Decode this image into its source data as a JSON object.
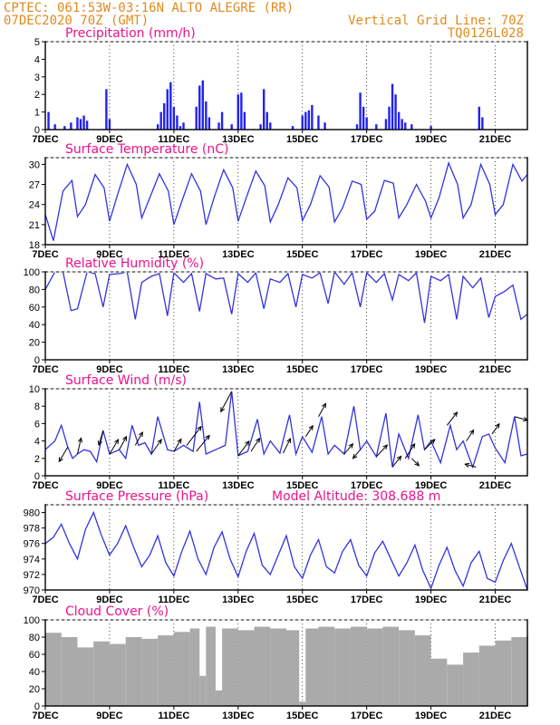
{
  "header": {
    "line1_left": "CPTEC:   061:53W-03:16N  ALTO ALEGRE (RR)",
    "line2_left": "07DEC2020 70Z (GMT)",
    "line1_right": "Vertical Grid Line: 70Z",
    "line2_right": "TQ0126L028"
  },
  "x_ticks": [
    "7DEC",
    "9DEC",
    "11DEC",
    "13DEC",
    "15DEC",
    "17DEC",
    "19DEC",
    "21DEC"
  ],
  "x_range_days": [
    7,
    22
  ],
  "colors": {
    "line": "#3333dd",
    "bar": "#2222ee",
    "cloud": "#aaaaaa",
    "header": "#e08a1e",
    "title": "#e8138c"
  },
  "chart_data": [
    {
      "type": "bar",
      "id": "precip",
      "title": "Precipitation (mm/h)",
      "ylim": [
        0,
        5
      ],
      "yticks": [
        0,
        1,
        2,
        3,
        4,
        5
      ],
      "x_days": [
        7.1,
        7.3,
        7.6,
        7.8,
        8.0,
        8.1,
        8.2,
        8.3,
        8.9,
        9.0,
        10.5,
        10.6,
        10.7,
        10.8,
        10.9,
        11.0,
        11.1,
        11.2,
        11.3,
        11.7,
        11.8,
        11.9,
        12.0,
        12.1,
        12.4,
        12.5,
        12.8,
        13.0,
        13.1,
        13.2,
        13.7,
        13.8,
        13.9,
        14.0,
        14.7,
        15.0,
        15.1,
        15.2,
        15.3,
        15.5,
        15.7,
        16.7,
        16.8,
        16.9,
        17.0,
        17.3,
        17.6,
        17.7,
        17.8,
        17.9,
        18.0,
        18.1,
        18.2,
        18.4,
        19.0,
        20.5,
        20.6
      ],
      "values": [
        1.0,
        0.3,
        0.2,
        0.4,
        0.7,
        0.6,
        0.8,
        0.5,
        2.3,
        0.6,
        0.3,
        1.0,
        1.5,
        2.3,
        2.7,
        1.3,
        0.8,
        0.2,
        0.4,
        1.3,
        2.5,
        2.8,
        1.6,
        0.7,
        0.4,
        1.0,
        0.3,
        2.0,
        2.1,
        1.0,
        0.3,
        2.3,
        1.0,
        0.4,
        0.2,
        0.8,
        1.0,
        1.1,
        1.4,
        0.8,
        0.4,
        0.3,
        2.1,
        1.3,
        0.7,
        0.3,
        0.6,
        1.3,
        2.6,
        2.0,
        1.0,
        0.6,
        0.4,
        0.3,
        0.2,
        1.3,
        0.7
      ]
    },
    {
      "type": "line",
      "id": "temp",
      "title": "Surface Temperature (nC)",
      "ylim": [
        18,
        31
      ],
      "yticks": [
        18,
        21,
        24,
        27,
        30
      ],
      "x_days": [
        7.0,
        7.25,
        7.55,
        7.83,
        8.0,
        8.25,
        8.55,
        8.83,
        9.0,
        9.25,
        9.55,
        9.83,
        10.0,
        10.25,
        10.55,
        10.83,
        11.0,
        11.25,
        11.55,
        11.83,
        12.0,
        12.25,
        12.55,
        12.83,
        13.0,
        13.25,
        13.55,
        13.83,
        14.0,
        14.25,
        14.55,
        14.83,
        15.0,
        15.25,
        15.55,
        15.83,
        16.0,
        16.25,
        16.55,
        16.83,
        17.0,
        17.25,
        17.55,
        17.83,
        18.0,
        18.25,
        18.55,
        18.83,
        19.0,
        19.25,
        19.55,
        19.83,
        20.0,
        20.25,
        20.55,
        20.83,
        21.0,
        21.25,
        21.55,
        21.83,
        22.0
      ],
      "values": [
        22.5,
        18.6,
        26.0,
        27.6,
        22.2,
        24.0,
        28.5,
        26.5,
        21.5,
        25.5,
        30.0,
        27.0,
        22.0,
        25.0,
        28.6,
        26.0,
        21.0,
        24.5,
        28.6,
        26.0,
        21.0,
        25.0,
        29.2,
        26.5,
        21.5,
        25.0,
        29.0,
        26.8,
        21.4,
        24.0,
        28.0,
        26.5,
        21.6,
        24.0,
        28.3,
        26.6,
        21.4,
        23.5,
        27.5,
        27.0,
        21.8,
        23.0,
        27.6,
        27.2,
        22.0,
        24.0,
        27.0,
        24.5,
        22.0,
        25.0,
        30.2,
        27.0,
        22.0,
        24.0,
        30.0,
        27.0,
        22.5,
        24.0,
        30.0,
        27.5,
        28.5
      ]
    },
    {
      "type": "line",
      "id": "rh",
      "title": "Relative Humidity (%)",
      "ylim": [
        0,
        100
      ],
      "yticks": [
        0,
        20,
        40,
        60,
        80,
        100
      ],
      "x_days": [
        7.0,
        7.3,
        7.55,
        7.8,
        8.0,
        8.3,
        8.55,
        8.8,
        9.0,
        9.3,
        9.55,
        9.8,
        10.0,
        10.3,
        10.55,
        10.8,
        11.0,
        11.3,
        11.55,
        11.8,
        12.0,
        12.3,
        12.55,
        12.8,
        13.0,
        13.3,
        13.55,
        13.8,
        14.0,
        14.3,
        14.55,
        14.8,
        15.0,
        15.3,
        15.55,
        15.8,
        16.0,
        16.3,
        16.55,
        16.8,
        17.0,
        17.3,
        17.55,
        17.8,
        18.0,
        18.3,
        18.55,
        18.8,
        19.0,
        19.3,
        19.55,
        19.8,
        20.0,
        20.3,
        20.55,
        20.8,
        21.0,
        21.3,
        21.55,
        21.8,
        22.0
      ],
      "values": [
        80,
        100,
        100,
        56,
        58,
        100,
        98,
        60,
        97,
        98,
        100,
        46,
        88,
        95,
        98,
        50,
        99,
        88,
        98,
        55,
        98,
        92,
        93,
        52,
        98,
        88,
        99,
        58,
        92,
        88,
        98,
        60,
        97,
        93,
        99,
        64,
        100,
        86,
        99,
        60,
        99,
        88,
        98,
        68,
        97,
        90,
        99,
        42,
        95,
        90,
        97,
        46,
        95,
        82,
        93,
        48,
        72,
        78,
        85,
        46,
        52
      ]
    },
    {
      "type": "line",
      "id": "wind",
      "title": "Surface Wind (m/s)",
      "ylim": [
        0,
        10
      ],
      "yticks": [
        0,
        2,
        4,
        6,
        8,
        10
      ],
      "x_days": [
        7.0,
        7.3,
        7.5,
        7.7,
        7.85,
        8.0,
        8.2,
        8.4,
        8.6,
        8.8,
        9.0,
        9.3,
        9.5,
        9.7,
        9.9,
        10.1,
        10.3,
        10.5,
        10.8,
        11.0,
        11.3,
        11.6,
        11.8,
        12.0,
        12.3,
        12.6,
        12.8,
        13.0,
        13.3,
        13.6,
        13.8,
        14.0,
        14.3,
        14.6,
        14.8,
        15.0,
        15.3,
        15.6,
        15.8,
        16.0,
        16.3,
        16.6,
        16.8,
        17.0,
        17.3,
        17.6,
        17.8,
        18.0,
        18.3,
        18.6,
        18.8,
        19.0,
        19.3,
        19.6,
        19.8,
        20.0,
        20.3,
        20.6,
        20.8,
        21.0,
        21.3,
        21.6,
        21.8,
        22.0
      ],
      "values": [
        3.0,
        4.0,
        5.8,
        3.3,
        2.0,
        2.5,
        3.0,
        2.8,
        1.6,
        5.2,
        2.5,
        3.0,
        2.0,
        5.8,
        3.5,
        3.8,
        2.5,
        6.8,
        3.0,
        2.8,
        3.5,
        2.8,
        8.5,
        2.5,
        3.0,
        3.5,
        9.7,
        2.3,
        2.8,
        6.5,
        2.5,
        4.0,
        2.6,
        7.0,
        2.5,
        4.5,
        2.7,
        6.8,
        2.5,
        3.5,
        2.5,
        8.0,
        3.0,
        4.0,
        2.2,
        7.2,
        1.0,
        4.8,
        2.0,
        7.0,
        3.0,
        4.0,
        1.5,
        5.8,
        3.0,
        4.0,
        1.0,
        4.5,
        4.8,
        3.2,
        1.5,
        6.8,
        2.3,
        2.5
      ],
      "vectors": [
        {
          "x": 7.7,
          "u": -1.2,
          "v": -2.0
        },
        {
          "x": 8.0,
          "u": 0.5,
          "v": 2.2
        },
        {
          "x": 8.8,
          "u": -0.6,
          "v": -2.0
        },
        {
          "x": 9.0,
          "u": 1.2,
          "v": 2.0
        },
        {
          "x": 9.3,
          "u": 1.0,
          "v": 1.8
        },
        {
          "x": 9.8,
          "u": 1.0,
          "v": 1.8
        },
        {
          "x": 10.3,
          "u": 1.4,
          "v": 2.0
        },
        {
          "x": 11.0,
          "u": 1.0,
          "v": 1.7
        },
        {
          "x": 11.4,
          "u": 2.0,
          "v": 2.6
        },
        {
          "x": 11.7,
          "u": 1.8,
          "v": 2.2
        },
        {
          "x": 12.8,
          "u": -1.5,
          "v": -2.8
        },
        {
          "x": 13.0,
          "u": 1.5,
          "v": 2.0
        },
        {
          "x": 13.4,
          "u": 1.2,
          "v": 1.8
        },
        {
          "x": 14.4,
          "u": 1.0,
          "v": 2.0
        },
        {
          "x": 15.1,
          "u": 1.0,
          "v": 1.5
        },
        {
          "x": 15.5,
          "u": 1.0,
          "v": 1.8
        },
        {
          "x": 16.3,
          "u": 1.2,
          "v": 1.4
        },
        {
          "x": 16.8,
          "u": -1.0,
          "v": -1.2
        },
        {
          "x": 17.3,
          "u": 1.5,
          "v": 1.6
        },
        {
          "x": 17.8,
          "u": 1.2,
          "v": 1.5
        },
        {
          "x": 18.2,
          "u": 1.3,
          "v": 2.0
        },
        {
          "x": 18.4,
          "u": 1.0,
          "v": -1.0
        },
        {
          "x": 18.8,
          "u": 1.4,
          "v": 1.4
        },
        {
          "x": 19.5,
          "u": 1.4,
          "v": 1.8
        },
        {
          "x": 20.1,
          "u": 1.0,
          "v": 1.5
        },
        {
          "x": 20.4,
          "u": -1.5,
          "v": 0.4
        },
        {
          "x": 20.9,
          "u": 1.0,
          "v": 1.4
        },
        {
          "x": 21.6,
          "u": 1.8,
          "v": -0.5
        }
      ]
    },
    {
      "type": "line",
      "id": "pressure",
      "title": "Surface Pressure (hPa)",
      "title_extra": "Model Altitude: 308.688  m",
      "ylim": [
        970,
        981
      ],
      "yticks": [
        970,
        972,
        974,
        976,
        978,
        980
      ],
      "x_days": [
        7.0,
        7.25,
        7.5,
        7.75,
        8.0,
        8.25,
        8.5,
        8.75,
        9.0,
        9.25,
        9.5,
        9.75,
        10.0,
        10.25,
        10.5,
        10.75,
        11.0,
        11.25,
        11.5,
        11.75,
        12.0,
        12.25,
        12.5,
        12.75,
        13.0,
        13.25,
        13.5,
        13.75,
        14.0,
        14.25,
        14.5,
        14.75,
        15.0,
        15.25,
        15.5,
        15.75,
        16.0,
        16.25,
        16.5,
        16.75,
        17.0,
        17.25,
        17.5,
        17.75,
        18.0,
        18.25,
        18.5,
        18.75,
        19.0,
        19.25,
        19.5,
        19.75,
        20.0,
        20.25,
        20.5,
        20.75,
        21.0,
        21.25,
        21.5,
        21.75,
        22.0
      ],
      "values": [
        976.0,
        976.8,
        978.5,
        976.0,
        974.0,
        977.8,
        980.0,
        977.0,
        974.5,
        976.0,
        978.3,
        975.5,
        973.0,
        974.5,
        977.0,
        973.5,
        971.8,
        975.0,
        977.6,
        974.0,
        972.0,
        975.5,
        977.5,
        974.0,
        971.7,
        975.0,
        977.3,
        973.2,
        972.0,
        974.5,
        977.0,
        973.0,
        971.5,
        974.5,
        976.5,
        973.0,
        972.2,
        975.0,
        976.5,
        973.2,
        971.8,
        974.8,
        976.3,
        974.0,
        971.8,
        973.5,
        975.8,
        972.5,
        970.2,
        973.2,
        975.5,
        972.5,
        970.5,
        973.5,
        975.0,
        971.5,
        971.0,
        973.8,
        976.0,
        973.0,
        970.0
      ]
    },
    {
      "type": "bar",
      "id": "cloud",
      "title": "Cloud Cover (%)",
      "ylim": [
        0,
        100
      ],
      "yticks": [
        0,
        20,
        40,
        60,
        80,
        100
      ],
      "x_days": [
        7.0,
        7.5,
        8.0,
        8.5,
        9.0,
        9.5,
        10.0,
        10.5,
        11.0,
        11.5,
        11.8,
        12.0,
        12.3,
        12.5,
        13.0,
        13.5,
        14.0,
        14.5,
        14.9,
        15.1,
        15.5,
        16.0,
        16.5,
        17.0,
        17.5,
        18.0,
        18.5,
        19.0,
        19.5,
        20.0,
        20.5,
        21.0,
        21.5,
        22.0
      ],
      "values": [
        85,
        80,
        68,
        75,
        72,
        80,
        78,
        82,
        86,
        90,
        35,
        92,
        18,
        90,
        88,
        92,
        90,
        88,
        5,
        90,
        92,
        90,
        92,
        90,
        92,
        88,
        82,
        55,
        48,
        62,
        70,
        76,
        80,
        82
      ]
    }
  ]
}
